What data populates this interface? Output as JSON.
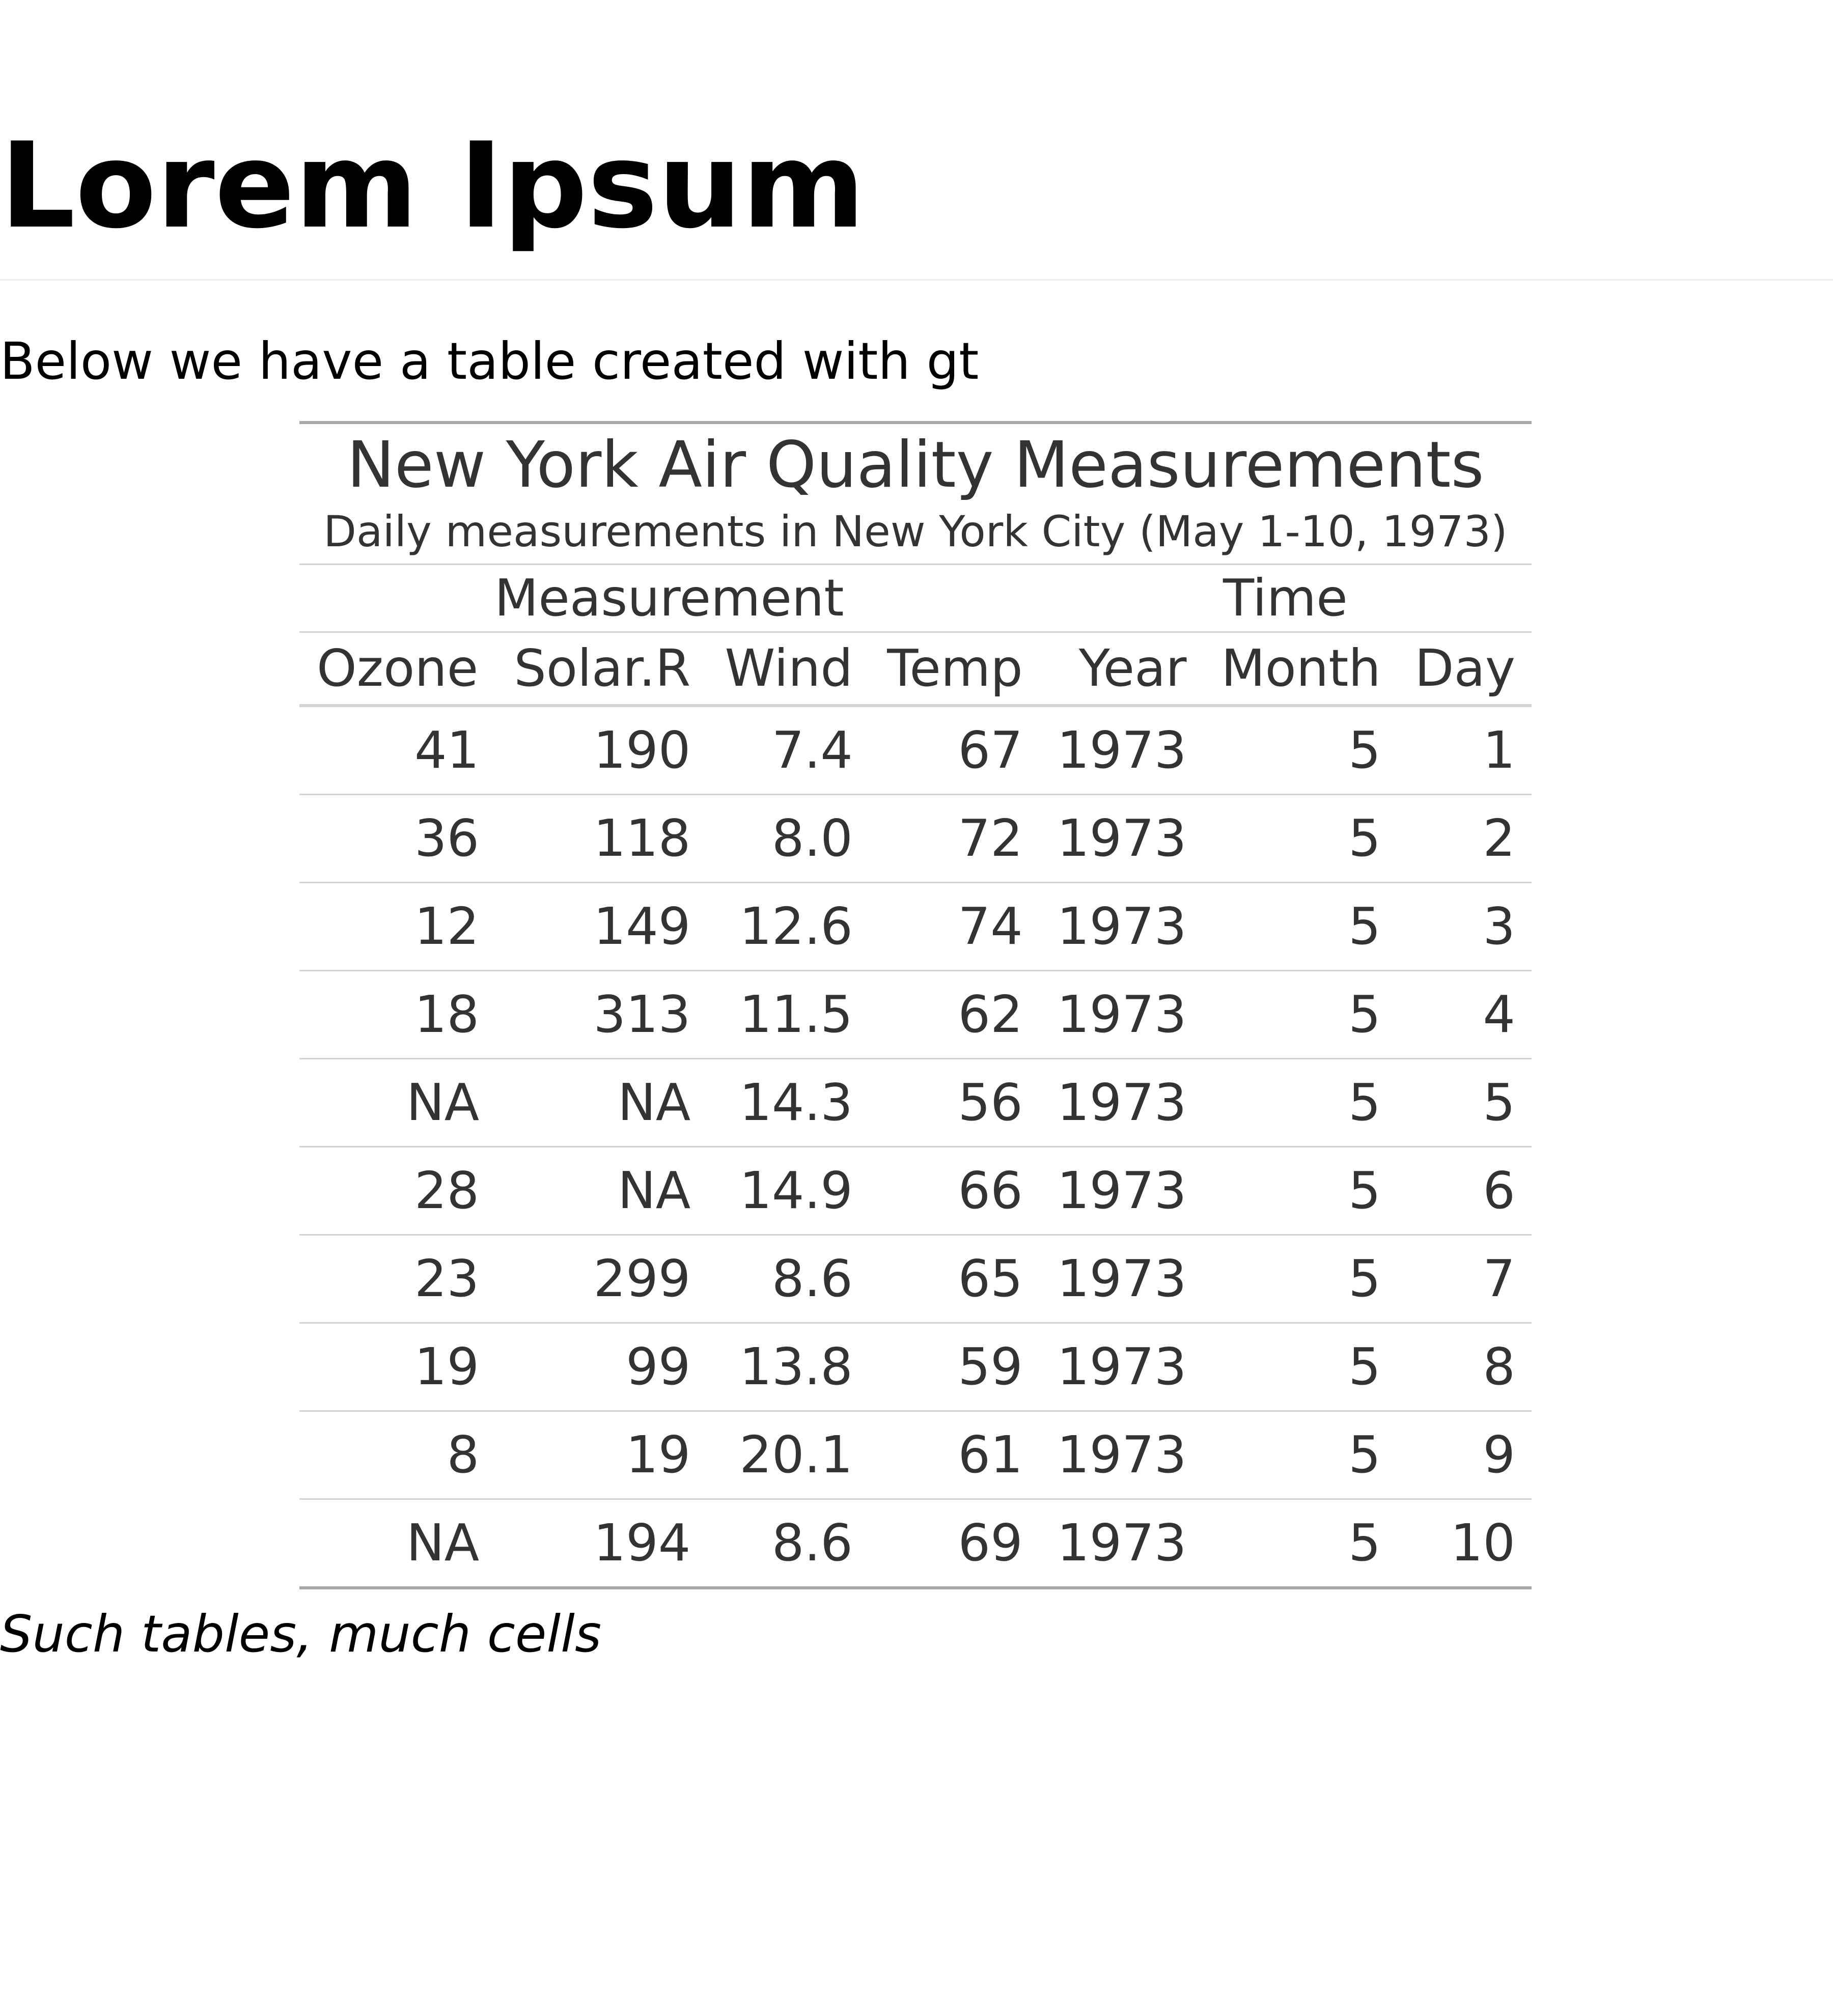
{
  "page": {
    "title": "Lorem Ipsum",
    "intro": "Below we have a table created with gt",
    "footer_note": "Such tables, much cells"
  },
  "table": {
    "title": "New York Air Quality Measurements",
    "subtitle": "Daily measurements in New York City (May 1-10, 1973)",
    "spanners": {
      "measurement": "Measurement",
      "time": "Time"
    },
    "columns": [
      "Ozone",
      "Solar.R",
      "Wind",
      "Temp",
      "Year",
      "Month",
      "Day"
    ],
    "rows": [
      [
        "41",
        "190",
        "7.4",
        "67",
        "1973",
        "5",
        "1"
      ],
      [
        "36",
        "118",
        "8.0",
        "72",
        "1973",
        "5",
        "2"
      ],
      [
        "12",
        "149",
        "12.6",
        "74",
        "1973",
        "5",
        "3"
      ],
      [
        "18",
        "313",
        "11.5",
        "62",
        "1973",
        "5",
        "4"
      ],
      [
        "NA",
        "NA",
        "14.3",
        "56",
        "1973",
        "5",
        "5"
      ],
      [
        "28",
        "NA",
        "14.9",
        "66",
        "1973",
        "5",
        "6"
      ],
      [
        "23",
        "299",
        "8.6",
        "65",
        "1973",
        "5",
        "7"
      ],
      [
        "19",
        "99",
        "13.8",
        "59",
        "1973",
        "5",
        "8"
      ],
      [
        "8",
        "19",
        "20.1",
        "61",
        "1973",
        "5",
        "9"
      ],
      [
        "NA",
        "194",
        "8.6",
        "69",
        "1973",
        "5",
        "10"
      ]
    ]
  },
  "colors": {
    "text": "#000000",
    "table_text": "#333333",
    "outer_rule": "#a8a8a8",
    "inner_rule": "#d3d3d3"
  }
}
